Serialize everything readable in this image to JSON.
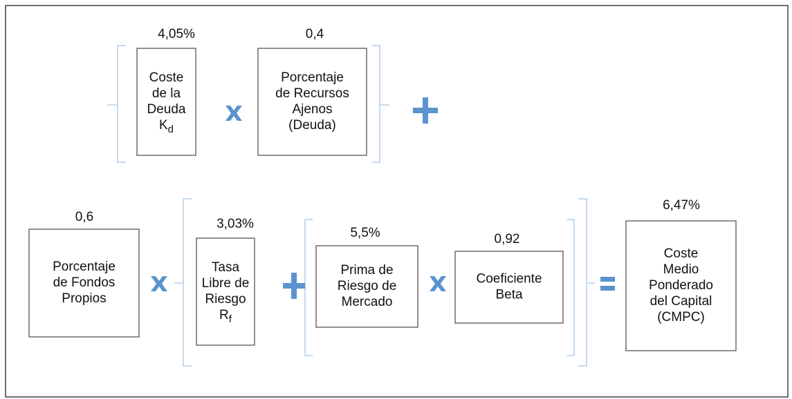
{
  "nodes": [
    {
      "value": "4,05%",
      "lines": [
        "Coste",
        "de la",
        "Deuda",
        {
          "main": "K",
          "sub": "d"
        }
      ]
    },
    {
      "value": "0,4",
      "lines": [
        "Porcentaje",
        "de Recursos",
        "Ajenos",
        "(Deuda)"
      ]
    },
    {
      "value": "0,6",
      "lines": [
        "Porcentaje",
        "de Fondos",
        "Propios"
      ]
    },
    {
      "value": "3,03%",
      "lines": [
        "Tasa",
        "Libre de",
        "Riesgo",
        {
          "main": "R",
          "sub": "f"
        }
      ]
    },
    {
      "value": "5,5%",
      "lines": [
        "Prima de",
        "Riesgo de",
        "Mercado"
      ]
    },
    {
      "value": "0,92",
      "lines": [
        "Coeficiente",
        "Beta"
      ]
    },
    {
      "value": "6,47%",
      "lines": [
        "Coste",
        "Medio",
        "Ponderado",
        "del Capital",
        "(CMPC)"
      ]
    }
  ]
}
